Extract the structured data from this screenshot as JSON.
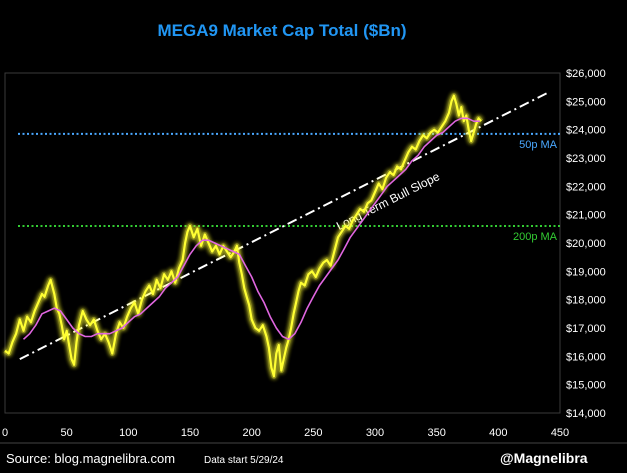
{
  "chart_data": {
    "type": "line",
    "title": "MEGA9 Market Cap Total ($Bn)",
    "xlim": [
      0,
      450
    ],
    "ylim": [
      14000,
      26000
    ],
    "x_ticks": [
      0,
      50,
      100,
      150,
      200,
      250,
      300,
      350,
      400,
      450
    ],
    "y_ticks": [
      14000,
      15000,
      16000,
      17000,
      18000,
      19000,
      20000,
      21000,
      22000,
      23000,
      24000,
      25000,
      26000
    ],
    "y_tick_labels": [
      "$14,000",
      "$15,000",
      "$16,000",
      "$17,000",
      "$18,000",
      "$19,000",
      "$20,000",
      "$21,000",
      "$22,000",
      "$23,000",
      "$24,000",
      "$25,000",
      "$26,000"
    ],
    "grid": false,
    "colors": {
      "price": "#ffff33",
      "price_glow": "#ffff33",
      "ma20": "#e066e0",
      "ma50": "#4aa8ff",
      "ma200": "#33cc33",
      "trend": "#ffffff",
      "title": "#2196f3"
    },
    "series": [
      {
        "role": "price",
        "points": [
          [
            0,
            16200
          ],
          [
            3,
            16100
          ],
          [
            6,
            16500
          ],
          [
            9,
            16800
          ],
          [
            12,
            17300
          ],
          [
            15,
            16900
          ],
          [
            18,
            17400
          ],
          [
            21,
            17200
          ],
          [
            24,
            17600
          ],
          [
            27,
            17900
          ],
          [
            30,
            18200
          ],
          [
            32,
            18100
          ],
          [
            35,
            18500
          ],
          [
            37,
            18700
          ],
          [
            40,
            18200
          ],
          [
            42,
            17700
          ],
          [
            44,
            17500
          ],
          [
            46,
            17100
          ],
          [
            48,
            16600
          ],
          [
            50,
            16900
          ],
          [
            52,
            16400
          ],
          [
            54,
            15900
          ],
          [
            56,
            15700
          ],
          [
            58,
            16500
          ],
          [
            60,
            17100
          ],
          [
            63,
            17600
          ],
          [
            66,
            17300
          ],
          [
            69,
            17100
          ],
          [
            72,
            17300
          ],
          [
            75,
            16900
          ],
          [
            78,
            16600
          ],
          [
            81,
            16800
          ],
          [
            84,
            16500
          ],
          [
            87,
            16100
          ],
          [
            90,
            16800
          ],
          [
            93,
            17200
          ],
          [
            96,
            17000
          ],
          [
            99,
            17400
          ],
          [
            102,
            17700
          ],
          [
            105,
            17900
          ],
          [
            108,
            17500
          ],
          [
            111,
            18000
          ],
          [
            114,
            18300
          ],
          [
            117,
            18500
          ],
          [
            120,
            18200
          ],
          [
            123,
            18700
          ],
          [
            126,
            18400
          ],
          [
            129,
            18900
          ],
          [
            132,
            18700
          ],
          [
            135,
            19000
          ],
          [
            138,
            18600
          ],
          [
            141,
            19100
          ],
          [
            144,
            19400
          ],
          [
            146,
            20000
          ],
          [
            148,
            20400
          ],
          [
            150,
            20600
          ],
          [
            153,
            20200
          ],
          [
            156,
            20500
          ],
          [
            159,
            19900
          ],
          [
            162,
            20300
          ],
          [
            165,
            20000
          ],
          [
            168,
            19700
          ],
          [
            171,
            19900
          ],
          [
            174,
            19600
          ],
          [
            177,
            19900
          ],
          [
            180,
            19700
          ],
          [
            183,
            19500
          ],
          [
            186,
            19700
          ],
          [
            188,
            19900
          ],
          [
            190,
            19300
          ],
          [
            192,
            18900
          ],
          [
            194,
            18400
          ],
          [
            196,
            18100
          ],
          [
            198,
            17800
          ],
          [
            200,
            17300
          ],
          [
            203,
            17000
          ],
          [
            206,
            16900
          ],
          [
            209,
            17100
          ],
          [
            212,
            16700
          ],
          [
            214,
            16300
          ],
          [
            216,
            15600
          ],
          [
            218,
            15300
          ],
          [
            220,
            16100
          ],
          [
            222,
            16400
          ],
          [
            224,
            15500
          ],
          [
            226,
            15900
          ],
          [
            228,
            16300
          ],
          [
            230,
            16600
          ],
          [
            232,
            17000
          ],
          [
            234,
            17500
          ],
          [
            236,
            17900
          ],
          [
            238,
            18300
          ],
          [
            240,
            18600
          ],
          [
            243,
            18500
          ],
          [
            246,
            18900
          ],
          [
            249,
            19000
          ],
          [
            252,
            18800
          ],
          [
            255,
            19100
          ],
          [
            258,
            19300
          ],
          [
            261,
            19400
          ],
          [
            264,
            19200
          ],
          [
            267,
            19700
          ],
          [
            270,
            20200
          ],
          [
            273,
            20400
          ],
          [
            276,
            20600
          ],
          [
            279,
            20500
          ],
          [
            282,
            20800
          ],
          [
            285,
            21000
          ],
          [
            288,
            21200
          ],
          [
            291,
            21100
          ],
          [
            294,
            21400
          ],
          [
            297,
            21500
          ],
          [
            300,
            21800
          ],
          [
            303,
            22100
          ],
          [
            306,
            21900
          ],
          [
            309,
            22300
          ],
          [
            312,
            22500
          ],
          [
            315,
            22400
          ],
          [
            318,
            22700
          ],
          [
            321,
            22600
          ],
          [
            324,
            22900
          ],
          [
            327,
            23200
          ],
          [
            330,
            23400
          ],
          [
            333,
            23300
          ],
          [
            336,
            23600
          ],
          [
            339,
            23800
          ],
          [
            342,
            23700
          ],
          [
            345,
            23900
          ],
          [
            348,
            24000
          ],
          [
            351,
            23900
          ],
          [
            354,
            24100
          ],
          [
            357,
            24300
          ],
          [
            360,
            24600
          ],
          [
            362,
            25000
          ],
          [
            364,
            25200
          ],
          [
            366,
            24900
          ],
          [
            368,
            24500
          ],
          [
            370,
            24800
          ],
          [
            372,
            24300
          ],
          [
            374,
            24500
          ],
          [
            376,
            24000
          ],
          [
            378,
            23600
          ],
          [
            380,
            23900
          ],
          [
            382,
            24200
          ],
          [
            384,
            24400
          ],
          [
            386,
            24300
          ]
        ]
      },
      {
        "role": "ma20",
        "points": [
          [
            15,
            16600
          ],
          [
            20,
            16800
          ],
          [
            25,
            17100
          ],
          [
            30,
            17500
          ],
          [
            35,
            17600
          ],
          [
            40,
            17700
          ],
          [
            45,
            17600
          ],
          [
            50,
            17300
          ],
          [
            55,
            17000
          ],
          [
            60,
            16800
          ],
          [
            65,
            16700
          ],
          [
            70,
            16700
          ],
          [
            75,
            16800
          ],
          [
            80,
            16800
          ],
          [
            85,
            16800
          ],
          [
            90,
            16900
          ],
          [
            95,
            17000
          ],
          [
            100,
            17200
          ],
          [
            105,
            17400
          ],
          [
            110,
            17500
          ],
          [
            115,
            17700
          ],
          [
            120,
            17900
          ],
          [
            125,
            18100
          ],
          [
            130,
            18400
          ],
          [
            135,
            18600
          ],
          [
            140,
            18800
          ],
          [
            145,
            19200
          ],
          [
            150,
            19600
          ],
          [
            155,
            19900
          ],
          [
            160,
            20100
          ],
          [
            165,
            20100
          ],
          [
            170,
            20000
          ],
          [
            175,
            19900
          ],
          [
            180,
            19800
          ],
          [
            185,
            19700
          ],
          [
            190,
            19600
          ],
          [
            195,
            19200
          ],
          [
            200,
            18800
          ],
          [
            205,
            18300
          ],
          [
            210,
            17900
          ],
          [
            215,
            17400
          ],
          [
            220,
            17000
          ],
          [
            225,
            16700
          ],
          [
            230,
            16600
          ],
          [
            235,
            16800
          ],
          [
            240,
            17200
          ],
          [
            245,
            17700
          ],
          [
            250,
            18100
          ],
          [
            255,
            18500
          ],
          [
            260,
            18800
          ],
          [
            265,
            19100
          ],
          [
            270,
            19400
          ],
          [
            275,
            19800
          ],
          [
            280,
            20200
          ],
          [
            285,
            20500
          ],
          [
            290,
            20800
          ],
          [
            295,
            21100
          ],
          [
            300,
            21400
          ],
          [
            305,
            21700
          ],
          [
            310,
            22000
          ],
          [
            315,
            22200
          ],
          [
            320,
            22400
          ],
          [
            325,
            22600
          ],
          [
            330,
            22900
          ],
          [
            335,
            23100
          ],
          [
            340,
            23400
          ],
          [
            345,
            23600
          ],
          [
            350,
            23800
          ],
          [
            355,
            23900
          ],
          [
            360,
            24100
          ],
          [
            365,
            24300
          ],
          [
            370,
            24400
          ],
          [
            375,
            24400
          ],
          [
            380,
            24300
          ],
          [
            385,
            24300
          ]
        ]
      }
    ],
    "trend_line": {
      "label": "Long Term Bull Slope",
      "points": [
        [
          12,
          15900
        ],
        [
          440,
          25300
        ]
      ]
    },
    "h_lines": [
      {
        "role": "ma50",
        "y": 23850,
        "label": "50p MA"
      },
      {
        "role": "ma200",
        "y": 20600,
        "label": "200p MA"
      }
    ]
  },
  "footer": {
    "source": "Source: blog.magnelibra.com",
    "data_start": "Data start 5/29/24",
    "handle": "@Magnelibra"
  }
}
